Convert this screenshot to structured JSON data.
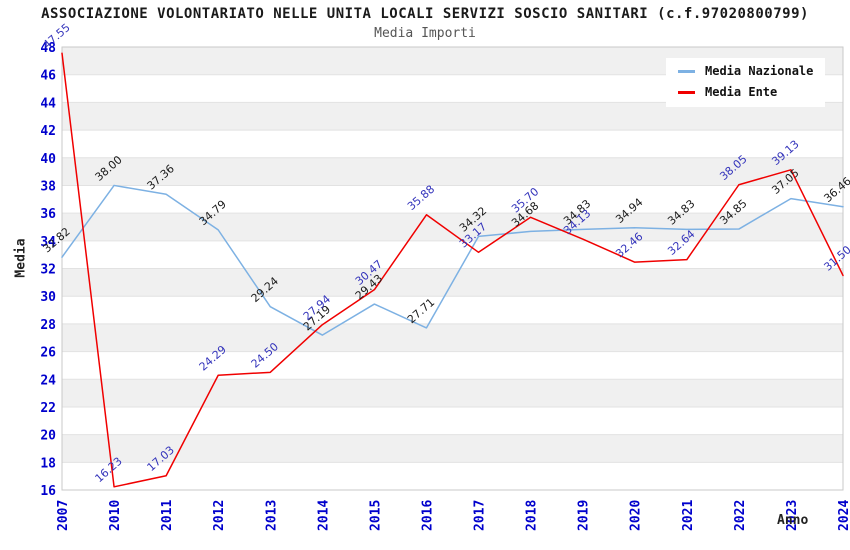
{
  "chart_data": {
    "type": "line",
    "title": "ASSOCIAZIONE VOLONTARIATO NELLE UNITA LOCALI SERVIZI SOSCIO SANITARI (c.f.97020800799)",
    "subtitle": "Media Importi",
    "xlabel": "Anno",
    "ylabel": "Media",
    "categories": [
      "2007",
      "2010",
      "2011",
      "2012",
      "2013",
      "2014",
      "2015",
      "2016",
      "2017",
      "2018",
      "2019",
      "2020",
      "2021",
      "2022",
      "2023",
      "2024"
    ],
    "series": [
      {
        "name": "Media Nazionale",
        "color": "#7db1e3",
        "label_color": "#1a1a1a",
        "values": [
          32.82,
          38.0,
          37.36,
          34.79,
          29.24,
          27.19,
          29.43,
          27.71,
          34.32,
          34.68,
          34.83,
          34.94,
          34.83,
          34.85,
          37.05,
          36.46
        ]
      },
      {
        "name": "Media Ente",
        "color": "#f00000",
        "label_color": "#3333bb",
        "values": [
          47.55,
          16.23,
          17.03,
          24.29,
          24.5,
          27.94,
          30.47,
          35.88,
          33.17,
          35.7,
          34.13,
          32.46,
          32.64,
          38.05,
          39.13,
          31.5
        ]
      }
    ],
    "ylim": [
      16,
      48
    ],
    "ytick_step": 2,
    "grid": "horizontal-bands",
    "legend_position": "top-right",
    "band_colors": [
      "#f0f0f0",
      "#ffffff"
    ],
    "gridline_color": "#e2e2e2",
    "border_color": "#c9c9c9",
    "axis_tick_color": "#0000cc",
    "label_decimals": 2
  }
}
